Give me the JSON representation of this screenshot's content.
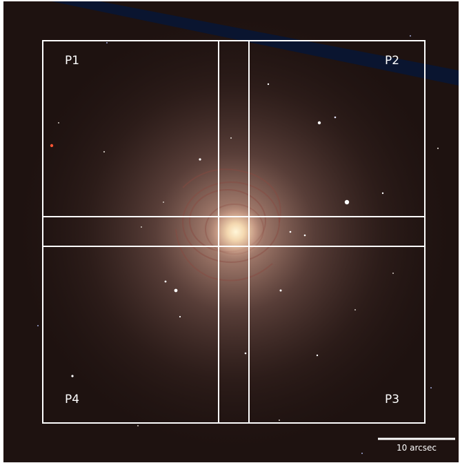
{
  "image": {
    "subject": "galaxy",
    "colors": {
      "background": "#1e1210",
      "core": "#fff2c8",
      "halo": "#b89080",
      "overlay": "#ffffff",
      "satellite_trail": "#0a1530"
    }
  },
  "regions": [
    {
      "label": "P1"
    },
    {
      "label": "P2"
    },
    {
      "label": "P3"
    },
    {
      "label": "P4"
    }
  ],
  "scale_bar": {
    "label": "10 arcsec"
  }
}
